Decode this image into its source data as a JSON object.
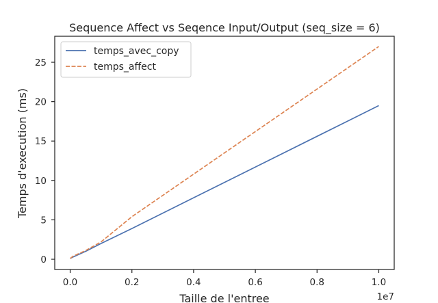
{
  "chart_data": {
    "type": "line",
    "title": "Sequence Affect vs Seqence Input/Output (seq_size = 6)",
    "xlabel": "Taille de l'entree",
    "ylabel": "Temps d'execution (ms)",
    "x_offset_label": "1e7",
    "xlim": [
      -500000,
      10500000
    ],
    "ylim": [
      -1.3,
      28.3
    ],
    "x_scale": 10000000,
    "x_ticks": [
      0,
      2000000,
      4000000,
      6000000,
      8000000,
      10000000
    ],
    "x_tick_labels": [
      "0.0",
      "0.2",
      "0.4",
      "0.6",
      "0.8",
      "1.0"
    ],
    "y_ticks": [
      0,
      5,
      10,
      15,
      20,
      25
    ],
    "y_tick_labels": [
      "0",
      "5",
      "10",
      "15",
      "20",
      "25"
    ],
    "grid": false,
    "legend_position": "upper left",
    "x": [
      0,
      100000,
      500000,
      1000000,
      2000000,
      4000000,
      6000000,
      8000000,
      10000000
    ],
    "series": [
      {
        "name": "temps_avec_copy",
        "color": "#4c72b0",
        "dash": "solid",
        "values": [
          0.1,
          0.3,
          1.0,
          2.0,
          3.9,
          7.8,
          11.7,
          15.6,
          19.5
        ]
      },
      {
        "name": "temps_affect",
        "color": "#dd8452",
        "dash": "dashed",
        "values": [
          0.1,
          0.4,
          1.1,
          2.2,
          5.4,
          10.8,
          16.2,
          21.6,
          27.0
        ]
      }
    ]
  }
}
